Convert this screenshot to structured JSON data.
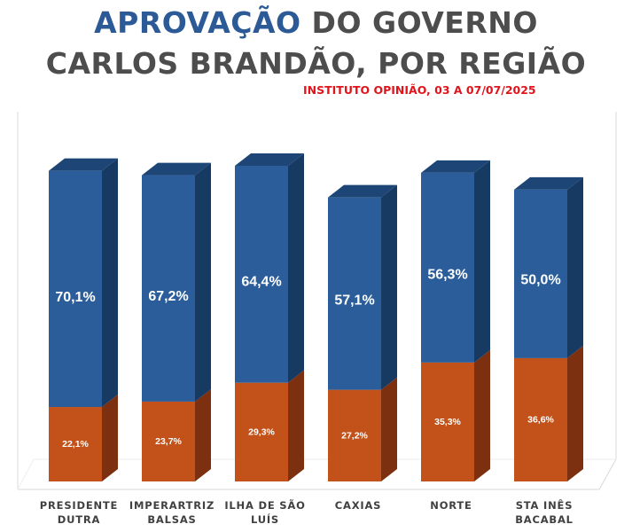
{
  "title": {
    "line1_accent": "APROVAÇÃO",
    "line1_rest": " DO GOVERNO",
    "line2": "CARLOS BRANDÃO, POR REGIÃO"
  },
  "subtitle": "INSTITUTO OPINIÃO, 03 A 07/07/2025",
  "colors": {
    "approve": "#2a5d9a",
    "approve_side": "#173a63",
    "approve_top": "#1d4676",
    "disapprove": "#c2521a",
    "disapprove_side": "#7c3010",
    "grid": "#d9d9d9"
  },
  "chart_data": {
    "type": "bar",
    "stacked": true,
    "categories": [
      [
        "PRESIDENTE",
        "DUTRA"
      ],
      [
        "IMPERARTRIZ",
        "BALSAS"
      ],
      [
        "ILHA DE SÃO",
        "LUÍS"
      ],
      [
        "CAXIAS"
      ],
      [
        "NORTE"
      ],
      [
        "STA INÊS",
        "BACABAL"
      ]
    ],
    "series": [
      {
        "key": "disapprove",
        "values": [
          22.1,
          23.7,
          29.3,
          27.2,
          35.3,
          36.6
        ],
        "labels": [
          "22,1%",
          "23,7%",
          "29,3%",
          "27,2%",
          "35,3%",
          "36,6%"
        ]
      },
      {
        "key": "approve",
        "values": [
          70.1,
          67.2,
          64.4,
          57.1,
          56.3,
          50.0
        ],
        "labels": [
          "70,1%",
          "67,2%",
          "64,4%",
          "57,1%",
          "56,3%",
          "50,0%"
        ]
      }
    ],
    "ylim": [
      0,
      100
    ],
    "grid": false,
    "legend": "none"
  }
}
